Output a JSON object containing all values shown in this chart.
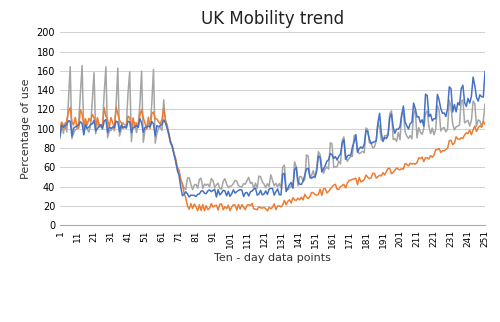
{
  "title": "UK Mobility trend",
  "xlabel": "Ten - day data points",
  "ylabel": "Percentage of use",
  "ylim": [
    0,
    200
  ],
  "yticks": [
    0,
    20,
    40,
    60,
    80,
    100,
    120,
    140,
    160,
    180,
    200
  ],
  "xtick_labels": [
    "1",
    "11",
    "21",
    "31",
    "41",
    "51",
    "61",
    "71",
    "81",
    "91",
    "101",
    "111",
    "121",
    "131",
    "141",
    "151",
    "161",
    "171",
    "181",
    "191",
    "201",
    "211",
    "221",
    "231",
    "241",
    "251"
  ],
  "xtick_positions": [
    1,
    11,
    21,
    31,
    41,
    51,
    61,
    71,
    81,
    91,
    101,
    111,
    121,
    131,
    141,
    151,
    161,
    171,
    181,
    191,
    201,
    211,
    221,
    231,
    241,
    251
  ],
  "driving_color": "#4472C4",
  "transit_color": "#ED7D31",
  "walking_color": "#A5A5A5",
  "line_width": 1.1,
  "background_color": "#ffffff",
  "grid_color": "#d0d0d0"
}
